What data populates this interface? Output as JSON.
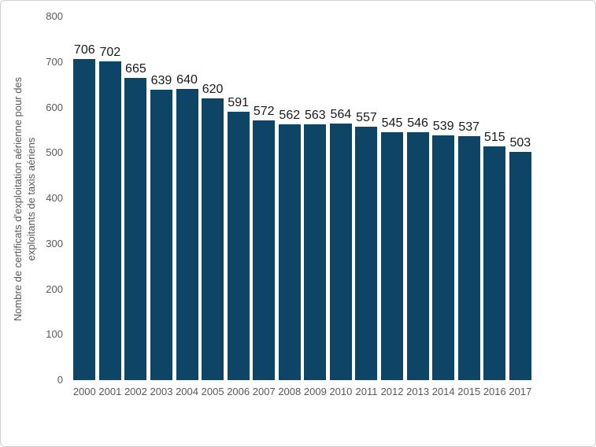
{
  "chart_data": {
    "type": "bar",
    "categories": [
      "2000",
      "2001",
      "2002",
      "2003",
      "2004",
      "2005",
      "2006",
      "2007",
      "2008",
      "2009",
      "2010",
      "2011",
      "2012",
      "2013",
      "2014",
      "2015",
      "2016",
      "2017"
    ],
    "values": [
      706,
      702,
      665,
      639,
      640,
      620,
      591,
      572,
      562,
      563,
      564,
      557,
      545,
      546,
      539,
      537,
      515,
      503
    ],
    "title": "",
    "xlabel": "",
    "ylabel": "Nombre de certificats d'exploitation aérienne pour des exploitants de taxis aériens",
    "ylabel_lines": {
      "0": "Nombre de certificats d'exploitation aérienne pour des",
      "1": "exploitants de taxis aériens"
    },
    "ylim": [
      0,
      800
    ],
    "yticks": [
      800,
      700,
      600,
      500,
      400,
      300,
      200,
      100,
      0
    ],
    "grid": false,
    "legend": null,
    "show_value_labels": true,
    "colors": {
      "bar": "#0e4466",
      "value_label": "#1a1a1a",
      "axis_text": "#595959",
      "background": "#ffffff",
      "frame_border": "#cfcfcf"
    }
  }
}
